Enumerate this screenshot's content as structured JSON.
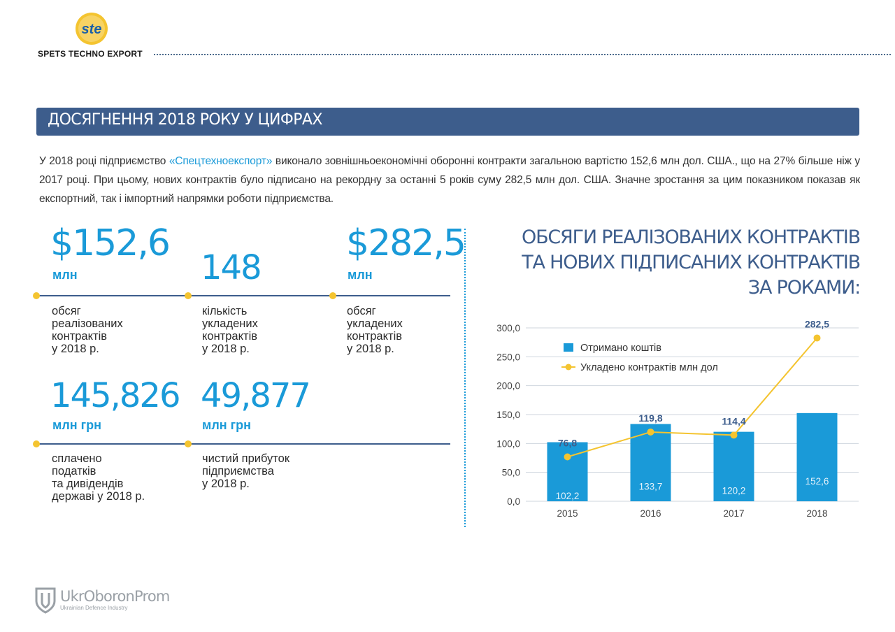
{
  "header": {
    "logo_text": "ste",
    "company_name": "SPETS TECHNO EXPORT"
  },
  "title": "ДОСЯГНЕННЯ 2018 РОКУ У ЦИФРАХ",
  "intro": {
    "part1": "У 2018 році підприємство ",
    "highlight": "«Спецтехноекспорт»",
    "part2": " виконало зовнішньоекономічні оборонні контракти загальною вартістю 152,6 млн дол. США., що на 27% більше ніж у 2017 році. При цьому, нових контрактів було підписано на рекордну за останні 5 років суму 282,5 млн дол. США. Значне зростання за цим показником показав як експортний, так і імпортний напрямки роботи підприємства."
  },
  "stats": [
    {
      "value": "$152,6",
      "unit": "млн",
      "desc": [
        "обсяг",
        "реалізованих",
        "контрактів",
        "у 2018 р."
      ]
    },
    {
      "value": "148",
      "unit": "",
      "desc": [
        "кількість",
        "укладених",
        "контрактів",
        "у 2018 р."
      ]
    },
    {
      "value": "$282,5",
      "unit": "млн",
      "desc": [
        "обсяг",
        "укладених",
        "контрактів",
        "у 2018 р."
      ]
    },
    {
      "value": "145,826",
      "unit": "млн грн",
      "desc": [
        "сплачено",
        "податків",
        "та дивідендів",
        "державі у 2018 р."
      ]
    },
    {
      "value": "49,877",
      "unit": "млн грн",
      "desc": [
        "чистий прибуток",
        "підприємства",
        "у 2018 р."
      ]
    }
  ],
  "chart_heading": [
    "ОБСЯГИ РЕАЛІЗОВАНИХ КОНТРАКТІВ",
    "ТА НОВИХ ПІДПИСАНИХ КОНТРАКТІВ",
    "ЗА РОКАМИ:"
  ],
  "chart_data": {
    "type": "bar",
    "categories": [
      "2015",
      "2016",
      "2017",
      "2018"
    ],
    "series": [
      {
        "name": "Отримано коштів",
        "type": "bar",
        "color": "#1a9ad8",
        "values": [
          102.2,
          133.7,
          120.2,
          152.6
        ],
        "labels": [
          "102,2",
          "133,7",
          "120,2",
          "152,6"
        ]
      },
      {
        "name": "Укладено контрактів млн дол",
        "type": "line",
        "color": "#f4c430",
        "values": [
          76.8,
          119.8,
          114.4,
          282.5
        ],
        "labels": [
          "76,8",
          "119,8",
          "114,4",
          "282,5"
        ]
      }
    ],
    "ylim": [
      0,
      300
    ],
    "yticks": [
      "0,0",
      "50,0",
      "100,0",
      "150,0",
      "200,0",
      "250,0",
      "300,0"
    ],
    "grid": true,
    "legend_position": "top-left"
  },
  "footer": {
    "name": "UkrOboronProm",
    "sub": "Ukrainian Defence Industry"
  }
}
